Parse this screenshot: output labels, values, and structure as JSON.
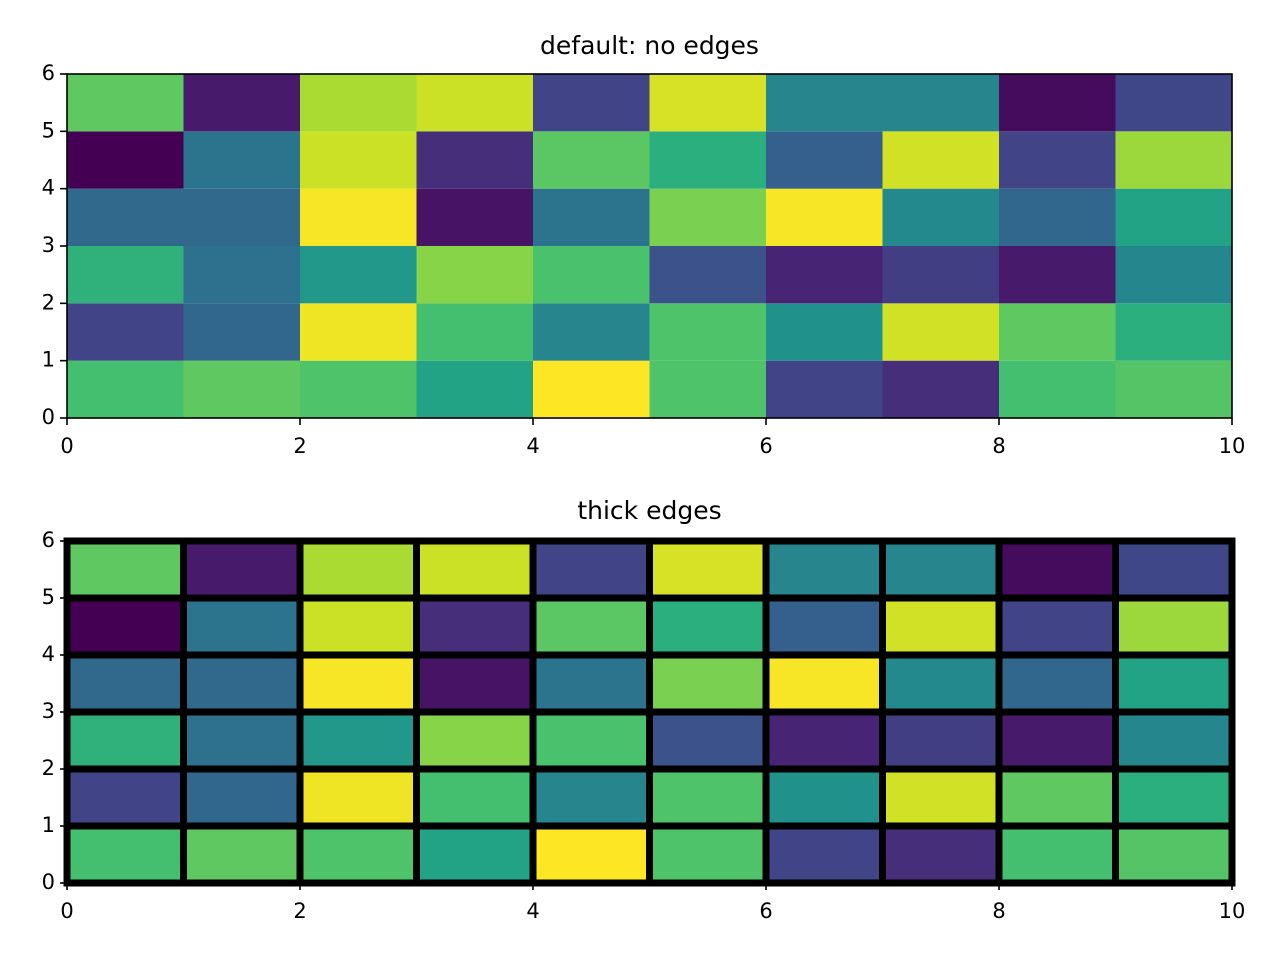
{
  "chart_data": [
    {
      "type": "pcolormesh",
      "title": "default: no edges",
      "cmap": "viridis",
      "xlim": [
        0,
        10
      ],
      "xticks": [
        0,
        2,
        4,
        6,
        8,
        10
      ],
      "ylim": [
        0,
        6
      ],
      "yticks": [
        0,
        1,
        2,
        3,
        4,
        5,
        6
      ],
      "z": [
        [
          0.7,
          0.75,
          0.72,
          0.58,
          1.0,
          0.72,
          0.2,
          0.13,
          0.7,
          0.73
        ],
        [
          0.2,
          0.33,
          0.98,
          0.7,
          0.45,
          0.72,
          0.5,
          0.93,
          0.75,
          0.63
        ],
        [
          0.64,
          0.37,
          0.53,
          0.82,
          0.71,
          0.25,
          0.1,
          0.18,
          0.07,
          0.46
        ],
        [
          0.34,
          0.34,
          0.99,
          0.05,
          0.38,
          0.8,
          0.99,
          0.47,
          0.33,
          0.58
        ],
        [
          0.0,
          0.38,
          0.92,
          0.13,
          0.74,
          0.63,
          0.3,
          0.93,
          0.2,
          0.85
        ],
        [
          0.75,
          0.07,
          0.87,
          0.92,
          0.2,
          0.94,
          0.45,
          0.45,
          0.03,
          0.21
        ]
      ]
    },
    {
      "type": "pcolormesh",
      "title": "thick edges",
      "cmap": "viridis",
      "edgecolor": "#000000",
      "linewidth": 4,
      "xlim": [
        0,
        10
      ],
      "xticks": [
        0,
        2,
        4,
        6,
        8,
        10
      ],
      "ylim": [
        0,
        6
      ],
      "yticks": [
        0,
        1,
        2,
        3,
        4,
        5,
        6
      ],
      "z": [
        [
          0.7,
          0.75,
          0.72,
          0.58,
          1.0,
          0.72,
          0.2,
          0.13,
          0.7,
          0.73
        ],
        [
          0.2,
          0.33,
          0.98,
          0.7,
          0.45,
          0.72,
          0.5,
          0.93,
          0.75,
          0.63
        ],
        [
          0.64,
          0.37,
          0.53,
          0.82,
          0.71,
          0.25,
          0.1,
          0.18,
          0.07,
          0.46
        ],
        [
          0.34,
          0.34,
          0.99,
          0.05,
          0.38,
          0.8,
          0.99,
          0.47,
          0.33,
          0.58
        ],
        [
          0.0,
          0.38,
          0.92,
          0.13,
          0.74,
          0.63,
          0.3,
          0.93,
          0.2,
          0.85
        ],
        [
          0.75,
          0.07,
          0.87,
          0.92,
          0.2,
          0.94,
          0.45,
          0.45,
          0.03,
          0.21
        ]
      ]
    }
  ]
}
